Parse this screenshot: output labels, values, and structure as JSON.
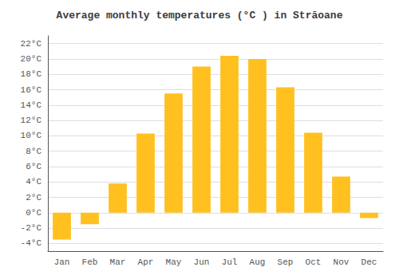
{
  "chart_data": {
    "type": "bar",
    "title": "Average monthly temperatures (°C ) in Străoane",
    "categories": [
      "Jan",
      "Feb",
      "Mar",
      "Apr",
      "May",
      "Jun",
      "Jul",
      "Aug",
      "Sep",
      "Oct",
      "Nov",
      "Dec"
    ],
    "values": [
      -3.5,
      -1.5,
      3.8,
      10.3,
      15.5,
      19.0,
      20.4,
      20.0,
      16.3,
      10.4,
      4.7,
      -0.7
    ],
    "color": "#FFC020",
    "ylim": [
      -5,
      23
    ],
    "yticks": [
      {
        "value": -4,
        "label": "-4°C"
      },
      {
        "value": -2,
        "label": "-2°C"
      },
      {
        "value": 0,
        "label": "0°C"
      },
      {
        "value": 2,
        "label": "2°C"
      },
      {
        "value": 4,
        "label": "4°C"
      },
      {
        "value": 6,
        "label": "6°C"
      },
      {
        "value": 8,
        "label": "8°C"
      },
      {
        "value": 10,
        "label": "10°C"
      },
      {
        "value": 12,
        "label": "12°C"
      },
      {
        "value": 14,
        "label": "14°C"
      },
      {
        "value": 16,
        "label": "16°C"
      },
      {
        "value": 18,
        "label": "18°C"
      },
      {
        "value": 20,
        "label": "20°C"
      },
      {
        "value": 22,
        "label": "22°C"
      }
    ],
    "grid": true
  }
}
